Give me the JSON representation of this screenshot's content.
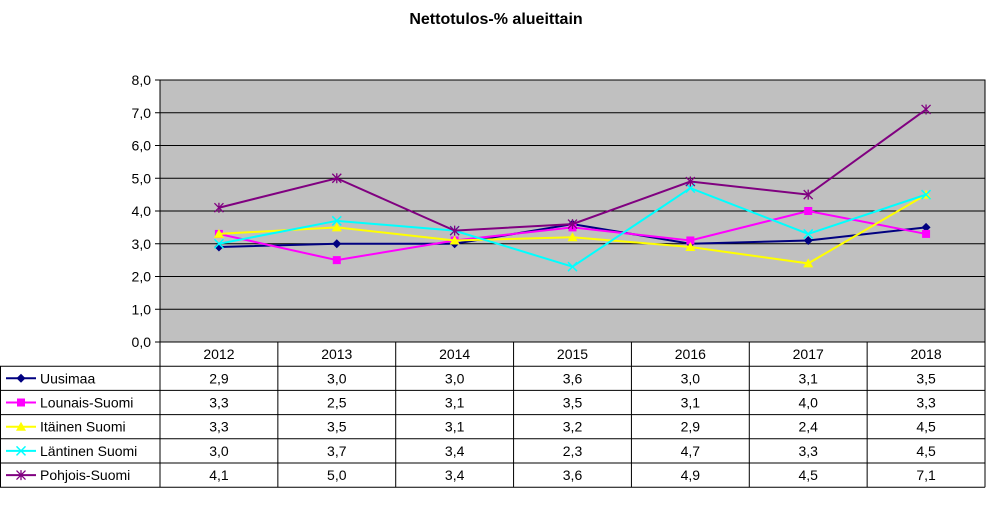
{
  "chart_data": {
    "type": "line",
    "title": "Nettotulos-% alueittain",
    "categories": [
      "2012",
      "2013",
      "2014",
      "2015",
      "2016",
      "2017",
      "2018"
    ],
    "ylim": [
      0,
      8
    ],
    "yticks": [
      "0,0",
      "1,0",
      "2,0",
      "3,0",
      "4,0",
      "5,0",
      "6,0",
      "7,0",
      "8,0"
    ],
    "grid": true,
    "legend": "data-table-left",
    "plot_background": "#C0C0C0",
    "series": [
      {
        "name": "Uusimaa",
        "color": "#000080",
        "marker": "diamond",
        "values": [
          2.9,
          3.0,
          3.0,
          3.6,
          3.0,
          3.1,
          3.5
        ],
        "labels": [
          "2,9",
          "3,0",
          "3,0",
          "3,6",
          "3,0",
          "3,1",
          "3,5"
        ]
      },
      {
        "name": "Lounais-Suomi",
        "color": "#FF00FF",
        "marker": "square",
        "values": [
          3.3,
          2.5,
          3.1,
          3.5,
          3.1,
          4.0,
          3.3
        ],
        "labels": [
          "3,3",
          "2,5",
          "3,1",
          "3,5",
          "3,1",
          "4,0",
          "3,3"
        ]
      },
      {
        "name": "Itäinen Suomi",
        "color": "#FFFF00",
        "marker": "triangle",
        "values": [
          3.3,
          3.5,
          3.1,
          3.2,
          2.9,
          2.4,
          4.5
        ],
        "labels": [
          "3,3",
          "3,5",
          "3,1",
          "3,2",
          "2,9",
          "2,4",
          "4,5"
        ]
      },
      {
        "name": "Läntinen Suomi",
        "color": "#00FFFF",
        "marker": "x",
        "values": [
          3.0,
          3.7,
          3.4,
          2.3,
          4.7,
          3.3,
          4.5
        ],
        "labels": [
          "3,0",
          "3,7",
          "3,4",
          "2,3",
          "4,7",
          "3,3",
          "4,5"
        ]
      },
      {
        "name": "Pohjois-Suomi",
        "color": "#800080",
        "marker": "star",
        "values": [
          4.1,
          5.0,
          3.4,
          3.6,
          4.9,
          4.5,
          7.1
        ],
        "labels": [
          "4,1",
          "5,0",
          "3,4",
          "3,6",
          "4,9",
          "4,5",
          "7,1"
        ]
      }
    ]
  }
}
